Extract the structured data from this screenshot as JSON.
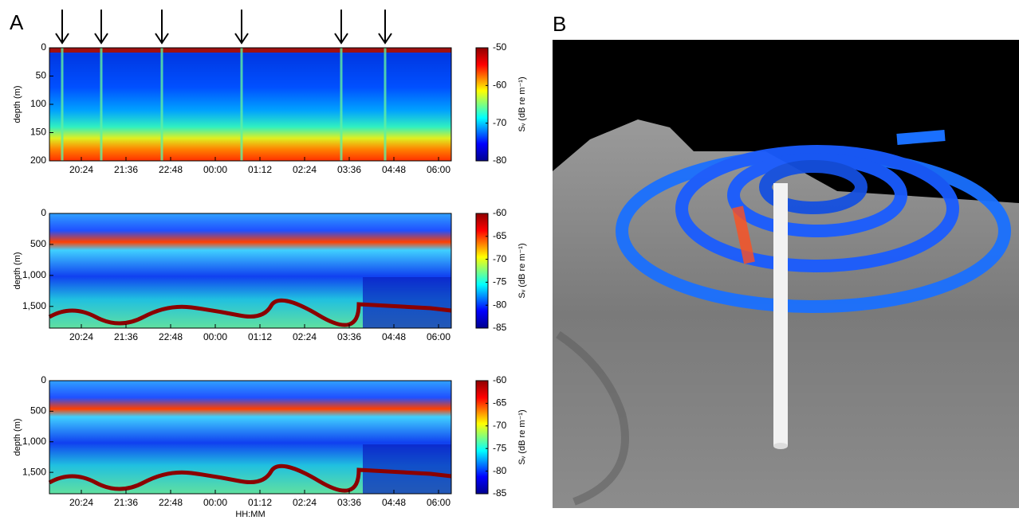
{
  "panels": [
    "A",
    "B"
  ],
  "chart_data": [
    {
      "type": "heatmap",
      "ylabel": "depth (m)",
      "ylim": [
        0,
        200
      ],
      "yticks": [
        0,
        50,
        100,
        150,
        200
      ],
      "categories": [
        "20:24",
        "21:36",
        "22:48",
        "00:00",
        "01:12",
        "02:24",
        "03:36",
        "04:48",
        "06:00"
      ],
      "colorbar_label": "Sᵥ (dB re m⁻¹)",
      "clim": [
        -80,
        -50
      ],
      "cticks": [
        -50,
        -60,
        -70,
        -80
      ]
    },
    {
      "type": "heatmap",
      "ylabel": "depth (m)",
      "ylim": [
        0,
        1850
      ],
      "yticks": [
        0,
        500,
        {
          "value": 1000,
          "label": "1,000"
        },
        {
          "value": 1500,
          "label": "1,500"
        }
      ],
      "categories": [
        "20:24",
        "21:36",
        "22:48",
        "00:00",
        "01:12",
        "02:24",
        "03:36",
        "04:48",
        "06:00"
      ],
      "colorbar_label": "Sᵥ (dB re m⁻¹)",
      "clim": [
        -85,
        -60
      ],
      "cticks": [
        -60,
        -65,
        -70,
        -75,
        -80,
        -85
      ]
    },
    {
      "type": "heatmap",
      "ylabel": "depth (m)",
      "xlabel": "HH:MM",
      "ylim": [
        0,
        1850
      ],
      "yticks": [
        0,
        500,
        {
          "value": 1000,
          "label": "1,000"
        },
        {
          "value": 1500,
          "label": "1,500"
        }
      ],
      "categories": [
        "20:24",
        "21:36",
        "22:48",
        "00:00",
        "01:12",
        "02:24",
        "03:36",
        "04:48",
        "06:00"
      ],
      "colorbar_label": "Sᵥ (dB re m⁻¹)",
      "clim": [
        -85,
        -60
      ],
      "cticks": [
        -60,
        -65,
        -70,
        -75,
        -80,
        -85
      ]
    }
  ]
}
